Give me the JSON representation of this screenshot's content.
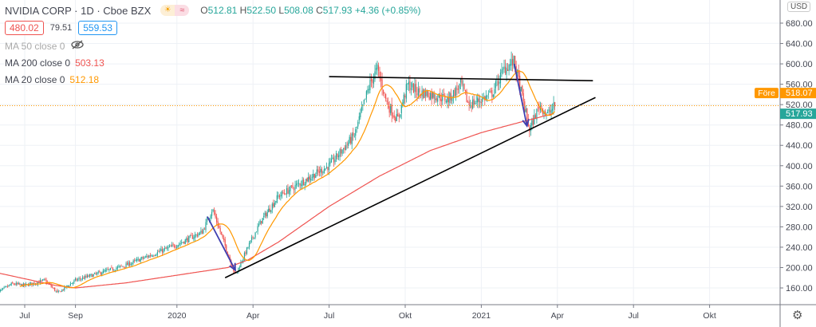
{
  "header": {
    "title": "NVIDIA CORP · 1D · Cboe BZX",
    "sun_icon": "☀",
    "approx_icon": "≈",
    "ohlc": [
      {
        "label": "O",
        "value": "512.81"
      },
      {
        "label": "H",
        "value": "522.50"
      },
      {
        "label": "L",
        "value": "508.08"
      },
      {
        "label": "C",
        "value": "517.93 +4.36 (+0.85%)"
      }
    ],
    "bid": "480.02",
    "spread": "79.51",
    "ask": "559.53"
  },
  "indicators": [
    {
      "label": "MA 50 close 0",
      "value": "",
      "hidden": true
    },
    {
      "label": "MA 200 close 0",
      "value": "503.13",
      "color": "#ef5350"
    },
    {
      "label": "MA 20 close 0",
      "value": "512.18",
      "color": "#ff9800"
    }
  ],
  "price_axis": {
    "currency": "USD",
    "ticks": [
      "680.00",
      "640.00",
      "600.00",
      "560.00",
      "520.00",
      "480.00",
      "440.00",
      "400.00",
      "360.00",
      "320.00",
      "280.00",
      "240.00",
      "200.00",
      "160.00"
    ],
    "tick_values": [
      680,
      640,
      600,
      560,
      520,
      480,
      440,
      400,
      360,
      320,
      280,
      240,
      200,
      160
    ],
    "prev_label": "Före",
    "prev_value": "518.07",
    "last_value": "517.93"
  },
  "time_axis": {
    "ticks": [
      {
        "label": "Jul",
        "m": 0
      },
      {
        "label": "Sep",
        "m": 2
      },
      {
        "label": "2020",
        "m": 6
      },
      {
        "label": "Apr",
        "m": 9
      },
      {
        "label": "Jul",
        "m": 12
      },
      {
        "label": "Okt",
        "m": 15
      },
      {
        "label": "2021",
        "m": 18
      },
      {
        "label": "Apr",
        "m": 21
      },
      {
        "label": "Jul",
        "m": 24
      },
      {
        "label": "Okt",
        "m": 27
      }
    ]
  },
  "colors": {
    "up": "#26a69a",
    "down": "#ef5350",
    "ma200": "#ef5350",
    "ma20": "#ff9800",
    "arrow": "#3f3fb0",
    "trend": "#000000",
    "prev": "#ff9800",
    "last": "#26a69a"
  },
  "chart_data": {
    "type": "candlestick",
    "x_unit": "months since Jul 2019",
    "y_range": [
      130,
      700
    ],
    "price_path": [
      [
        -1.1,
        150
      ],
      [
        -0.5,
        168
      ],
      [
        0,
        165
      ],
      [
        0.8,
        175
      ],
      [
        1.3,
        150
      ],
      [
        2,
        175
      ],
      [
        3,
        190
      ],
      [
        4,
        205
      ],
      [
        5,
        225
      ],
      [
        6,
        245
      ],
      [
        7,
        270
      ],
      [
        7.4,
        315
      ],
      [
        8.3,
        185
      ],
      [
        8.8,
        240
      ],
      [
        9.3,
        290
      ],
      [
        10,
        340
      ],
      [
        11,
        370
      ],
      [
        12,
        400
      ],
      [
        13,
        460
      ],
      [
        13.6,
        560
      ],
      [
        13.9,
        590
      ],
      [
        14.3,
        520
      ],
      [
        14.7,
        490
      ],
      [
        15.1,
        560
      ],
      [
        15.5,
        545
      ],
      [
        16,
        540
      ],
      [
        16.7,
        530
      ],
      [
        17.2,
        560
      ],
      [
        17.5,
        520
      ],
      [
        18,
        530
      ],
      [
        18.4,
        540
      ],
      [
        18.9,
        590
      ],
      [
        19.3,
        605
      ],
      [
        19.9,
        470
      ],
      [
        20.3,
        520
      ],
      [
        20.6,
        500
      ],
      [
        20.9,
        518
      ]
    ],
    "ma200_path": [
      [
        -1.1,
        190
      ],
      [
        1.2,
        165
      ],
      [
        2,
        160
      ],
      [
        4,
        170
      ],
      [
        6,
        185
      ],
      [
        8,
        200
      ],
      [
        8.8,
        215
      ],
      [
        10,
        250
      ],
      [
        12,
        320
      ],
      [
        14,
        380
      ],
      [
        16,
        430
      ],
      [
        18,
        465
      ],
      [
        19.5,
        485
      ],
      [
        20.9,
        503
      ]
    ],
    "trendlines": [
      {
        "from": [
          12,
          575
        ],
        "to": [
          22.4,
          567
        ]
      },
      {
        "from": [
          7.9,
          180
        ],
        "to": [
          22.5,
          534
        ]
      }
    ],
    "arrows": [
      {
        "from": [
          7.2,
          300
        ],
        "to": [
          8.3,
          195
        ]
      },
      {
        "from": [
          19.3,
          600
        ],
        "to": [
          19.8,
          478
        ]
      }
    ]
  }
}
